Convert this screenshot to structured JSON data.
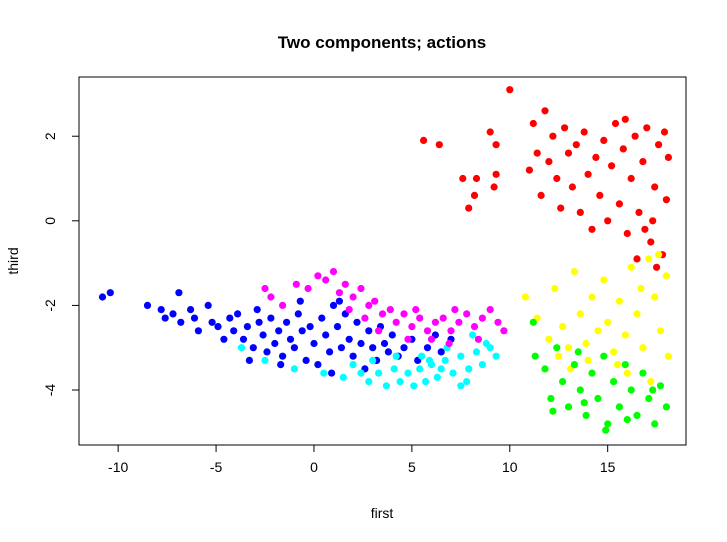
{
  "chart_data": {
    "type": "scatter",
    "title": "Two components; actions",
    "xlabel": "first",
    "ylabel": "third",
    "xlim": [
      -12,
      19
    ],
    "ylim": [
      -5.3,
      3.4
    ],
    "xticks": [
      -10,
      -5,
      0,
      5,
      10,
      15
    ],
    "yticks": [
      -4,
      -2,
      0,
      2
    ],
    "grid": false,
    "legend": "none",
    "series": [
      {
        "color": "#0000FF",
        "points": [
          [
            -10.8,
            -1.8
          ],
          [
            -10.4,
            -1.7
          ],
          [
            -8.5,
            -2.0
          ],
          [
            -7.8,
            -2.1
          ],
          [
            -7.6,
            -2.3
          ],
          [
            -7.2,
            -2.2
          ],
          [
            -6.9,
            -1.7
          ],
          [
            -6.8,
            -2.4
          ],
          [
            -6.3,
            -2.1
          ],
          [
            -6.1,
            -2.3
          ],
          [
            -5.9,
            -2.6
          ],
          [
            -5.4,
            -2.0
          ],
          [
            -5.2,
            -2.4
          ],
          [
            -4.9,
            -2.5
          ],
          [
            -4.6,
            -2.8
          ],
          [
            -4.3,
            -2.3
          ],
          [
            -4.1,
            -2.6
          ],
          [
            -3.9,
            -2.2
          ],
          [
            -3.6,
            -2.8
          ],
          [
            -3.4,
            -2.5
          ],
          [
            -3.1,
            -3.0
          ],
          [
            -3.3,
            -3.3
          ],
          [
            -2.8,
            -2.4
          ],
          [
            -2.6,
            -2.7
          ],
          [
            -2.4,
            -3.1
          ],
          [
            -2.2,
            -2.3
          ],
          [
            -2.0,
            -2.9
          ],
          [
            -1.8,
            -2.6
          ],
          [
            -1.6,
            -3.2
          ],
          [
            -1.4,
            -2.4
          ],
          [
            -1.2,
            -2.8
          ],
          [
            -1.0,
            -3.0
          ],
          [
            -0.8,
            -2.2
          ],
          [
            -0.6,
            -2.6
          ],
          [
            -0.4,
            -3.3
          ],
          [
            -0.2,
            -2.5
          ],
          [
            0.0,
            -2.9
          ],
          [
            0.2,
            -3.4
          ],
          [
            0.4,
            -2.3
          ],
          [
            0.6,
            -2.7
          ],
          [
            0.8,
            -3.1
          ],
          [
            1.0,
            -2.0
          ],
          [
            1.2,
            -2.5
          ],
          [
            1.4,
            -3.0
          ],
          [
            1.6,
            -2.2
          ],
          [
            1.8,
            -2.8
          ],
          [
            2.0,
            -3.2
          ],
          [
            2.2,
            -2.4
          ],
          [
            2.4,
            -2.9
          ],
          [
            2.6,
            -3.5
          ],
          [
            2.8,
            -2.6
          ],
          [
            3.0,
            -3.0
          ],
          [
            3.2,
            -3.3
          ],
          [
            3.4,
            -2.5
          ],
          [
            3.6,
            -2.9
          ],
          [
            3.8,
            -3.1
          ],
          [
            4.0,
            -2.7
          ],
          [
            4.3,
            -3.2
          ],
          [
            4.6,
            -3.0
          ],
          [
            5.0,
            -2.8
          ],
          [
            5.3,
            -3.3
          ],
          [
            5.8,
            -3.0
          ],
          [
            6.2,
            -2.7
          ],
          [
            6.5,
            -3.1
          ],
          [
            7.0,
            -2.8
          ],
          [
            -1.7,
            -3.4
          ],
          [
            0.9,
            -3.6
          ],
          [
            1.3,
            -1.9
          ],
          [
            -0.7,
            -1.9
          ],
          [
            -2.9,
            -2.1
          ]
        ]
      },
      {
        "color": "#00FFFF",
        "points": [
          [
            -3.7,
            -3.0
          ],
          [
            -2.5,
            -3.3
          ],
          [
            -1.0,
            -3.5
          ],
          [
            0.5,
            -3.6
          ],
          [
            1.5,
            -3.7
          ],
          [
            2.0,
            -3.4
          ],
          [
            2.8,
            -3.8
          ],
          [
            3.3,
            -3.6
          ],
          [
            3.7,
            -3.9
          ],
          [
            4.1,
            -3.5
          ],
          [
            4.4,
            -3.8
          ],
          [
            4.8,
            -3.6
          ],
          [
            5.1,
            -3.9
          ],
          [
            5.4,
            -3.5
          ],
          [
            5.7,
            -3.8
          ],
          [
            6.0,
            -3.4
          ],
          [
            6.3,
            -3.7
          ],
          [
            6.7,
            -3.3
          ],
          [
            7.1,
            -3.6
          ],
          [
            7.5,
            -3.2
          ],
          [
            7.9,
            -3.5
          ],
          [
            8.3,
            -3.1
          ],
          [
            8.6,
            -3.4
          ],
          [
            9.0,
            -3.0
          ],
          [
            9.3,
            -3.2
          ],
          [
            4.2,
            -3.2
          ],
          [
            5.5,
            -3.2
          ],
          [
            6.8,
            -3.0
          ],
          [
            7.8,
            -3.8
          ],
          [
            7.5,
            -3.9
          ],
          [
            3.0,
            -3.3
          ],
          [
            2.4,
            -3.6
          ],
          [
            8.1,
            -2.7
          ],
          [
            8.8,
            -2.9
          ],
          [
            6.5,
            -3.5
          ],
          [
            5.9,
            -3.3
          ]
        ]
      },
      {
        "color": "#FF00FF",
        "points": [
          [
            -2.5,
            -1.6
          ],
          [
            -2.2,
            -1.8
          ],
          [
            -1.6,
            -2.0
          ],
          [
            -0.9,
            -1.5
          ],
          [
            -0.3,
            -1.6
          ],
          [
            0.2,
            -1.3
          ],
          [
            0.6,
            -1.4
          ],
          [
            1.0,
            -1.2
          ],
          [
            1.3,
            -1.7
          ],
          [
            1.6,
            -1.5
          ],
          [
            2.0,
            -1.8
          ],
          [
            2.4,
            -1.6
          ],
          [
            2.8,
            -2.0
          ],
          [
            3.1,
            -1.9
          ],
          [
            3.5,
            -2.2
          ],
          [
            3.9,
            -2.1
          ],
          [
            4.2,
            -2.4
          ],
          [
            4.6,
            -2.2
          ],
          [
            5.0,
            -2.5
          ],
          [
            5.4,
            -2.3
          ],
          [
            5.8,
            -2.6
          ],
          [
            6.2,
            -2.4
          ],
          [
            6.6,
            -2.3
          ],
          [
            7.0,
            -2.6
          ],
          [
            7.4,
            -2.4
          ],
          [
            7.8,
            -2.2
          ],
          [
            8.2,
            -2.5
          ],
          [
            8.6,
            -2.3
          ],
          [
            9.0,
            -2.1
          ],
          [
            9.4,
            -2.4
          ],
          [
            9.7,
            -2.6
          ],
          [
            3.3,
            -2.6
          ],
          [
            4.8,
            -2.8
          ],
          [
            6.0,
            -2.8
          ],
          [
            7.2,
            -2.1
          ],
          [
            2.6,
            -2.3
          ],
          [
            1.8,
            -2.1
          ],
          [
            5.2,
            -2.1
          ],
          [
            8.4,
            -2.8
          ],
          [
            6.9,
            -2.9
          ]
        ]
      },
      {
        "color": "#FF0000",
        "points": [
          [
            5.6,
            1.9
          ],
          [
            6.4,
            1.8
          ],
          [
            7.6,
            1.0
          ],
          [
            7.9,
            0.3
          ],
          [
            8.2,
            0.6
          ],
          [
            8.3,
            1.0
          ],
          [
            9.0,
            2.1
          ],
          [
            9.2,
            0.8
          ],
          [
            9.3,
            1.1
          ],
          [
            9.3,
            1.8
          ],
          [
            10.0,
            3.1
          ],
          [
            11.0,
            1.2
          ],
          [
            11.2,
            2.3
          ],
          [
            11.4,
            1.6
          ],
          [
            11.6,
            0.6
          ],
          [
            11.8,
            2.6
          ],
          [
            12.0,
            1.4
          ],
          [
            12.2,
            2.0
          ],
          [
            12.4,
            1.0
          ],
          [
            12.6,
            0.3
          ],
          [
            12.8,
            2.2
          ],
          [
            13.0,
            1.6
          ],
          [
            13.2,
            0.8
          ],
          [
            13.4,
            1.8
          ],
          [
            13.6,
            0.2
          ],
          [
            13.8,
            2.1
          ],
          [
            14.0,
            1.1
          ],
          [
            14.2,
            -0.2
          ],
          [
            14.4,
            1.5
          ],
          [
            14.6,
            0.6
          ],
          [
            14.8,
            1.9
          ],
          [
            15.0,
            0.0
          ],
          [
            15.2,
            1.3
          ],
          [
            15.4,
            2.3
          ],
          [
            15.6,
            0.4
          ],
          [
            15.8,
            1.7
          ],
          [
            16.0,
            -0.3
          ],
          [
            16.2,
            1.0
          ],
          [
            16.4,
            2.0
          ],
          [
            16.6,
            0.2
          ],
          [
            16.8,
            1.4
          ],
          [
            17.0,
            2.2
          ],
          [
            17.2,
            -0.5
          ],
          [
            17.4,
            0.8
          ],
          [
            17.6,
            1.8
          ],
          [
            17.8,
            -0.8
          ],
          [
            18.0,
            0.5
          ],
          [
            18.1,
            1.5
          ],
          [
            17.5,
            -1.1
          ],
          [
            17.9,
            2.1
          ],
          [
            16.5,
            -0.9
          ],
          [
            15.9,
            2.4
          ],
          [
            17.3,
            0.0
          ],
          [
            16.9,
            -0.2
          ]
        ]
      },
      {
        "color": "#FFFF00",
        "points": [
          [
            10.8,
            -1.8
          ],
          [
            11.4,
            -2.3
          ],
          [
            12.0,
            -2.8
          ],
          [
            12.3,
            -1.6
          ],
          [
            12.7,
            -2.5
          ],
          [
            13.0,
            -3.0
          ],
          [
            13.3,
            -1.2
          ],
          [
            13.6,
            -2.2
          ],
          [
            13.9,
            -2.9
          ],
          [
            14.2,
            -1.8
          ],
          [
            14.5,
            -2.6
          ],
          [
            14.8,
            -1.4
          ],
          [
            15.0,
            -2.4
          ],
          [
            15.3,
            -3.1
          ],
          [
            15.6,
            -1.9
          ],
          [
            15.9,
            -2.7
          ],
          [
            16.2,
            -1.1
          ],
          [
            16.5,
            -2.2
          ],
          [
            16.8,
            -3.0
          ],
          [
            17.1,
            -0.9
          ],
          [
            17.4,
            -1.8
          ],
          [
            17.7,
            -2.6
          ],
          [
            18.0,
            -1.3
          ],
          [
            18.1,
            -3.2
          ],
          [
            17.6,
            -0.8
          ],
          [
            16.7,
            -1.6
          ],
          [
            15.5,
            -3.4
          ],
          [
            14.0,
            -3.3
          ],
          [
            13.1,
            -3.5
          ],
          [
            12.5,
            -3.2
          ],
          [
            17.2,
            -3.8
          ],
          [
            16.0,
            -3.6
          ]
        ]
      },
      {
        "color": "#00FF00",
        "points": [
          [
            11.2,
            -2.4
          ],
          [
            11.3,
            -3.2
          ],
          [
            11.8,
            -3.5
          ],
          [
            12.1,
            -4.2
          ],
          [
            12.4,
            -3.0
          ],
          [
            12.7,
            -3.8
          ],
          [
            13.0,
            -4.4
          ],
          [
            13.3,
            -3.4
          ],
          [
            13.6,
            -4.0
          ],
          [
            13.9,
            -4.6
          ],
          [
            14.2,
            -3.6
          ],
          [
            14.5,
            -4.2
          ],
          [
            14.8,
            -3.2
          ],
          [
            15.0,
            -4.8
          ],
          [
            15.3,
            -3.8
          ],
          [
            15.6,
            -4.4
          ],
          [
            15.9,
            -3.4
          ],
          [
            16.2,
            -4.0
          ],
          [
            16.5,
            -4.6
          ],
          [
            16.8,
            -3.6
          ],
          [
            17.1,
            -4.2
          ],
          [
            17.4,
            -4.8
          ],
          [
            17.7,
            -3.9
          ],
          [
            18.0,
            -4.4
          ],
          [
            12.2,
            -4.5
          ],
          [
            13.5,
            -3.1
          ],
          [
            14.9,
            -4.95
          ],
          [
            16.0,
            -4.7
          ],
          [
            17.3,
            -4.0
          ],
          [
            13.8,
            -4.3
          ]
        ]
      }
    ]
  }
}
